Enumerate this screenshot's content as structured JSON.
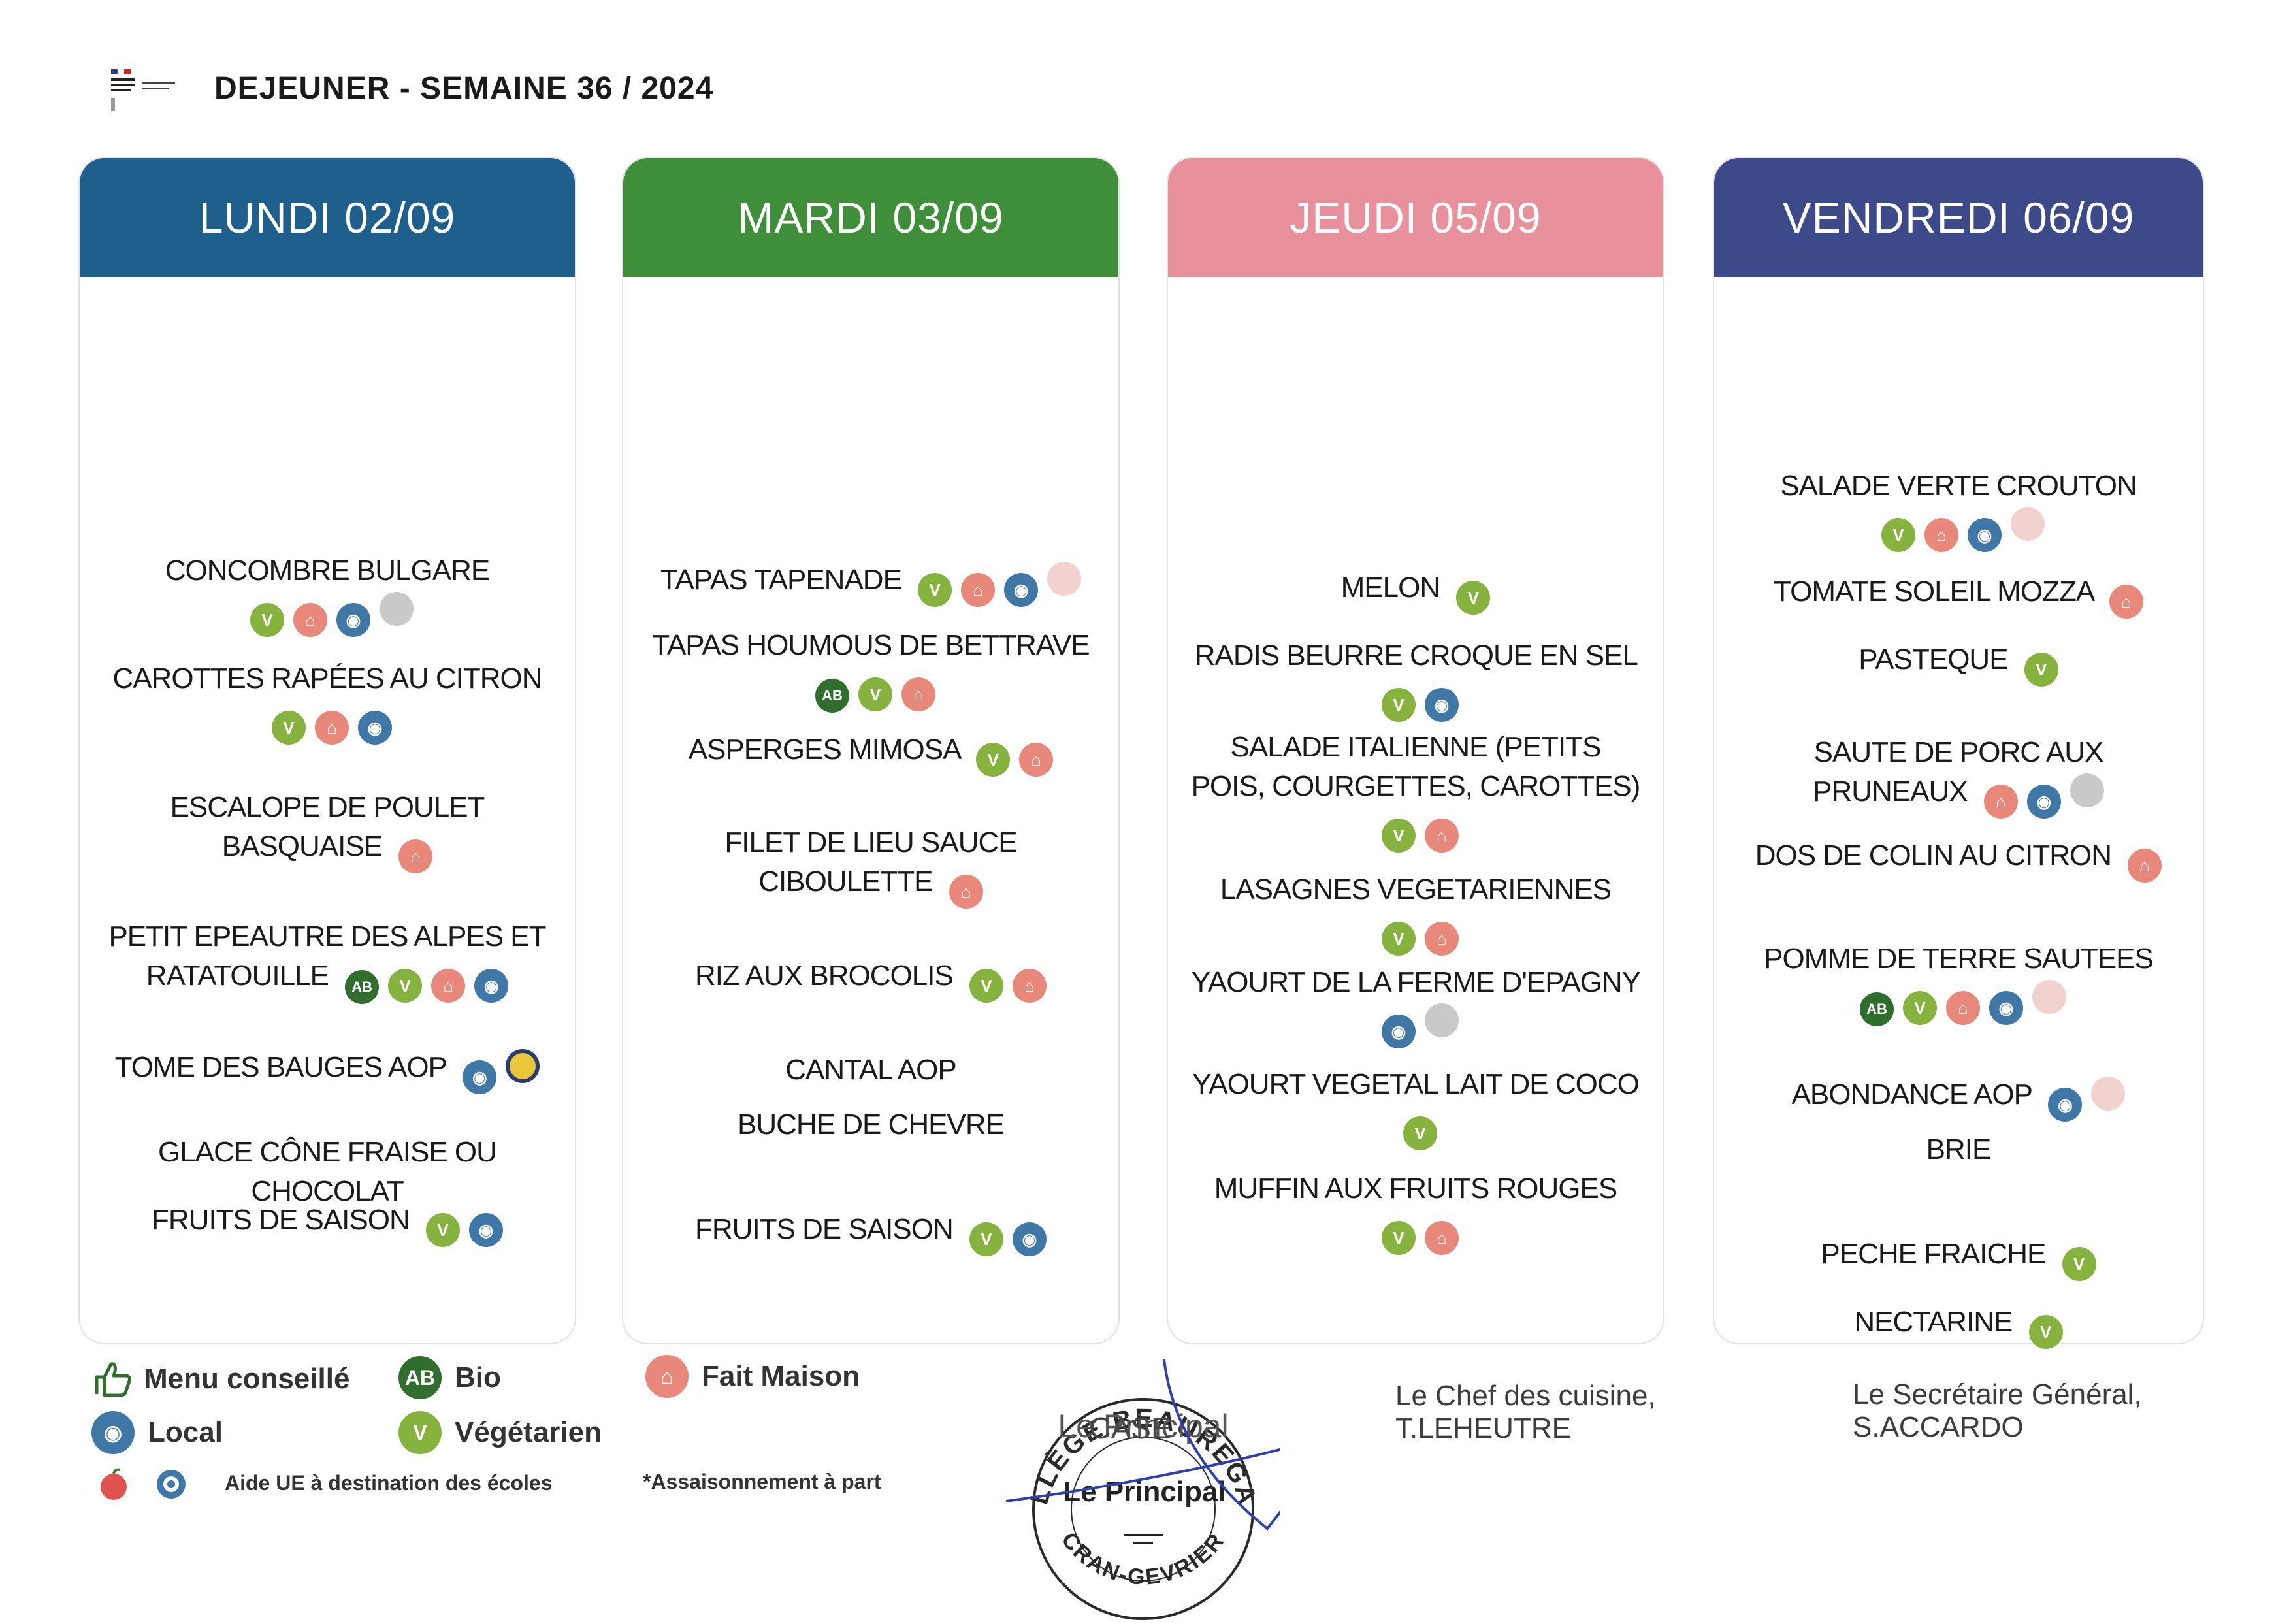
{
  "header": {
    "title": "DEJEUNER - SEMAINE 36 / 2024"
  },
  "days": [
    {
      "title": "LUNDI 02/09",
      "color": "#1f5f8b",
      "dishes": [
        {
          "name": "CONCOMBRE BULGARE",
          "icons": [
            "vegetarien",
            "fait-maison",
            "local",
            "aide-ue"
          ]
        },
        {
          "name": "CAROTTES RAPÉES AU CITRON",
          "icons": [
            "vegetarien",
            "fait-maison",
            "local"
          ]
        },
        {
          "name": "ESCALOPE DE POULET BASQUAISE",
          "icons": [
            "fait-maison"
          ]
        },
        {
          "name": "PETIT EPEAUTRE DES ALPES ET RATATOUILLE",
          "icons": [
            "bio",
            "vegetarien",
            "fait-maison",
            "local"
          ]
        },
        {
          "name": "TOME DES BAUGES AOP",
          "icons": [
            "local",
            "aop"
          ]
        },
        {
          "name": "GLACE CÔNE FRAISE OU CHOCOLAT",
          "icons": []
        },
        {
          "name": "FRUITS DE SAISON",
          "icons": [
            "vegetarien",
            "local"
          ]
        }
      ]
    },
    {
      "title": "MARDI 03/09",
      "color": "#3f8f3a",
      "dishes": [
        {
          "name": "TAPAS TAPENADE",
          "icons": [
            "vegetarien",
            "fait-maison",
            "local",
            "aide-ue-2"
          ]
        },
        {
          "name": "TAPAS HOUMOUS DE BETTRAVE",
          "icons": [
            "bio",
            "vegetarien",
            "fait-maison"
          ]
        },
        {
          "name": "ASPERGES MIMOSA",
          "icons": [
            "vegetarien",
            "fait-maison"
          ]
        },
        {
          "name": "FILET DE LIEU SAUCE CIBOULETTE",
          "icons": [
            "fait-maison"
          ]
        },
        {
          "name": "RIZ AUX BROCOLIS",
          "icons": [
            "vegetarien",
            "fait-maison"
          ]
        },
        {
          "name": "CANTAL AOP",
          "icons": []
        },
        {
          "name": "BUCHE DE CHEVRE",
          "icons": []
        },
        {
          "name": "FRUITS DE SAISON",
          "icons": [
            "vegetarien",
            "local"
          ]
        }
      ]
    },
    {
      "title": "JEUDI 05/09",
      "color": "#e8919c",
      "dishes": [
        {
          "name": "MELON",
          "icons": [
            "vegetarien"
          ]
        },
        {
          "name": "RADIS BEURRE CROQUE EN SEL",
          "icons": [
            "vegetarien",
            "local"
          ]
        },
        {
          "name": "SALADE ITALIENNE (PETITS POIS, COURGETTES, CAROTTES)",
          "icons": [
            "vegetarien",
            "fait-maison"
          ]
        },
        {
          "name": "LASAGNES VEGETARIENNES",
          "icons": [
            "vegetarien",
            "fait-maison"
          ]
        },
        {
          "name": "YAOURT DE LA FERME D'EPAGNY",
          "icons": [
            "local",
            "aide-ue"
          ]
        },
        {
          "name": "YAOURT VEGETAL LAIT DE COCO",
          "icons": [
            "vegetarien"
          ]
        },
        {
          "name": "MUFFIN AUX FRUITS ROUGES",
          "icons": [
            "vegetarien",
            "fait-maison"
          ]
        }
      ]
    },
    {
      "title": "VENDREDI 06/09",
      "color": "#3d4a8a",
      "dishes": [
        {
          "name": "SALADE VERTE CROUTON",
          "icons": [
            "vegetarien",
            "fait-maison",
            "local",
            "aide-ue-2"
          ]
        },
        {
          "name": "TOMATE SOLEIL MOZZA",
          "icons": [
            "fait-maison"
          ]
        },
        {
          "name": "PASTEQUE",
          "icons": [
            "vegetarien"
          ]
        },
        {
          "name": "SAUTE DE PORC AUX PRUNEAUX",
          "icons": [
            "fait-maison",
            "local",
            "aide-ue"
          ]
        },
        {
          "name": "DOS DE COLIN AU CITRON",
          "icons": [
            "fait-maison"
          ]
        },
        {
          "name": "POMME DE TERRE SAUTEES",
          "icons": [
            "bio",
            "vegetarien",
            "fait-maison",
            "local",
            "aide-ue-2"
          ]
        },
        {
          "name": "ABONDANCE AOP",
          "icons": [
            "local",
            "aide-ue-2"
          ]
        },
        {
          "name": "BRIE",
          "icons": []
        },
        {
          "name": "PECHE FRAICHE",
          "icons": [
            "vegetarien"
          ]
        },
        {
          "name": "NECTARINE",
          "icons": [
            "vegetarien"
          ]
        }
      ]
    }
  ],
  "legend": {
    "menu_conseille": "Menu conseillé",
    "bio": "Bio",
    "fait_maison": "Fait Maison",
    "local": "Local",
    "vegetarien": "Végétarien",
    "aide_ue": "Aide UE à destination des écoles",
    "assaisonnement": "*Assaisonnement à part",
    "bio_glyph": "AB",
    "veg_glyph": "V",
    "fm_glyph": "⌂",
    "local_glyph": "◉"
  },
  "signatures": {
    "chef": [
      "Le Chef des cuisine,",
      "T.LEHEUTRE"
    ],
    "secretaire": [
      "Le Secrétaire Général,",
      "S.ACCARDO"
    ],
    "stamp": {
      "top": "COLLÈGE BEAUREGARD",
      "bottom": "CRAN-GEVRIER",
      "center": "Le Principal",
      "overlay": "Le Principal",
      "name": "CASE"
    }
  },
  "colors": {
    "vegetarien": "#86b33e",
    "fait_maison": "#e8887a",
    "local": "#3f78a6",
    "bio": "#2f6e2c",
    "signature_ink": "#2f3fb3"
  }
}
